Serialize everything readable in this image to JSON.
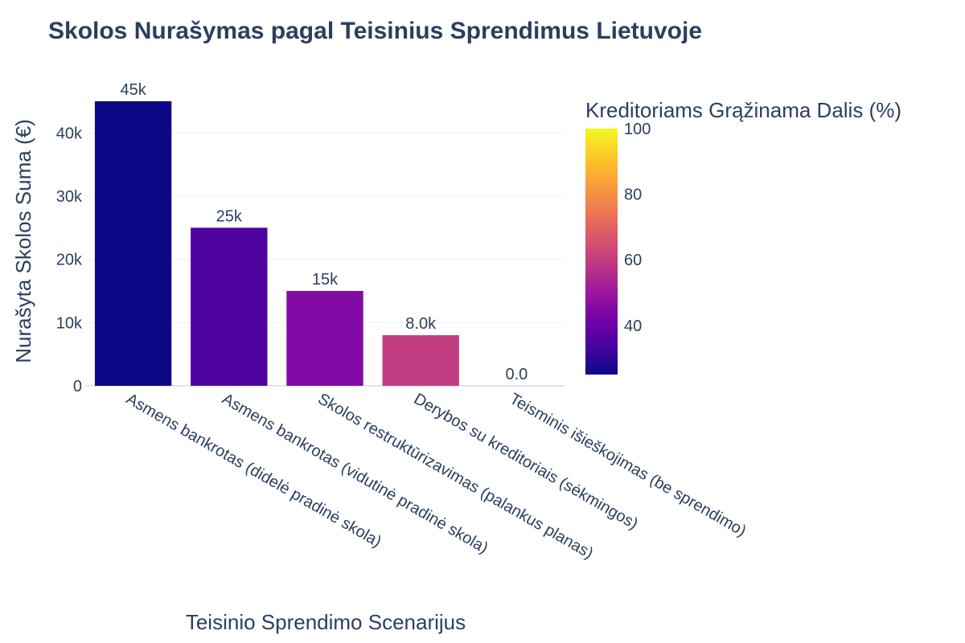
{
  "chart_data": {
    "type": "bar",
    "title": "Skolos Nurašymas pagal Teisinius Sprendimus Lietuvoje",
    "xlabel": "Teisinio Sprendimo Scenarijus",
    "ylabel": "Nurašyta Skolos Suma (€)",
    "categories": [
      "Asmens bankrotas (didelė pradinė skola)",
      "Asmens bankrotas (vidutinė pradinė skola)",
      "Skolos restruktūrizavimas (palankus planas)",
      "Derybos su kreditoriais (sėkmingos)",
      "Teisminis išieškojimas (be sprendimo)"
    ],
    "values": [
      45000,
      25000,
      15000,
      8000,
      0
    ],
    "data_labels": [
      "45k",
      "25k",
      "15k",
      "8.0k",
      "0.0"
    ],
    "color_values": [
      25,
      35,
      45,
      60,
      100
    ],
    "ylim": [
      0,
      45000
    ],
    "yticks": [
      0,
      10000,
      20000,
      30000,
      40000
    ],
    "ytick_labels": [
      "0",
      "10k",
      "20k",
      "30k",
      "40k"
    ],
    "grid": true,
    "colorbar": {
      "title": "Kreditoriams Grąžinama Dalis (%)",
      "range": [
        25,
        100
      ],
      "ticks": [
        40,
        60,
        80,
        100
      ],
      "tick_labels": [
        "40",
        "60",
        "80",
        "100"
      ],
      "colorscale": [
        "#0d0887",
        "#46039f",
        "#7201a8",
        "#9c179e",
        "#bd3786",
        "#d8576b",
        "#ed7953",
        "#fb9f3a",
        "#fdca26",
        "#f0f921"
      ]
    }
  }
}
